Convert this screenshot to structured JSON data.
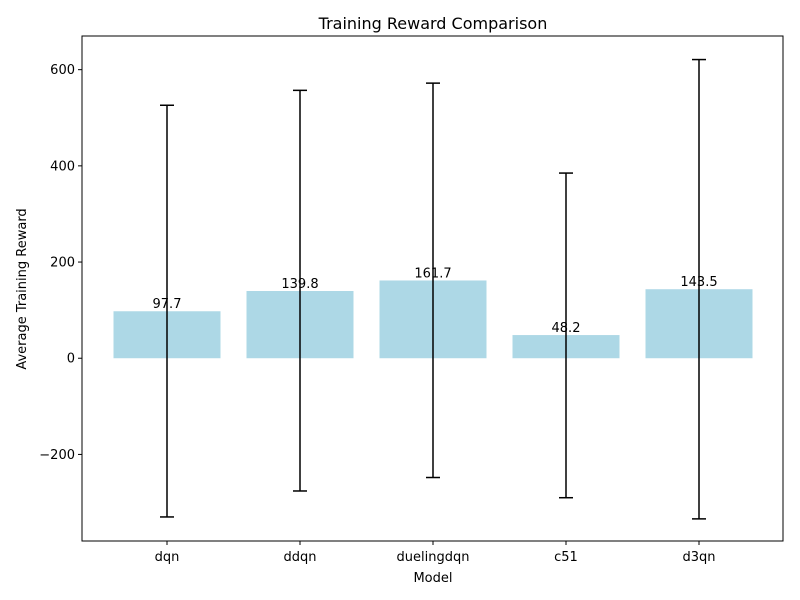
{
  "chart_data": {
    "type": "bar",
    "title": "Training Reward Comparison",
    "xlabel": "Model",
    "ylabel": "Average Training Reward",
    "categories": [
      "dqn",
      "ddqn",
      "duelingdqn",
      "c51",
      "d3qn"
    ],
    "values": [
      97.7,
      139.8,
      161.7,
      48.2,
      143.5
    ],
    "value_labels": [
      "97.7",
      "139.8",
      "161.7",
      "48.2",
      "143.5"
    ],
    "error_low": [
      -330,
      -276,
      -248,
      -290,
      -334
    ],
    "error_high": [
      526,
      557,
      572,
      385,
      621
    ],
    "ylim": [
      -380,
      670
    ],
    "yticks": [
      -200,
      0,
      200,
      400,
      600
    ],
    "ytick_labels": [
      "−200",
      "0",
      "200",
      "400",
      "600"
    ],
    "grid": false,
    "bar_color": "#add8e6",
    "errorbar_color": "#000000"
  }
}
